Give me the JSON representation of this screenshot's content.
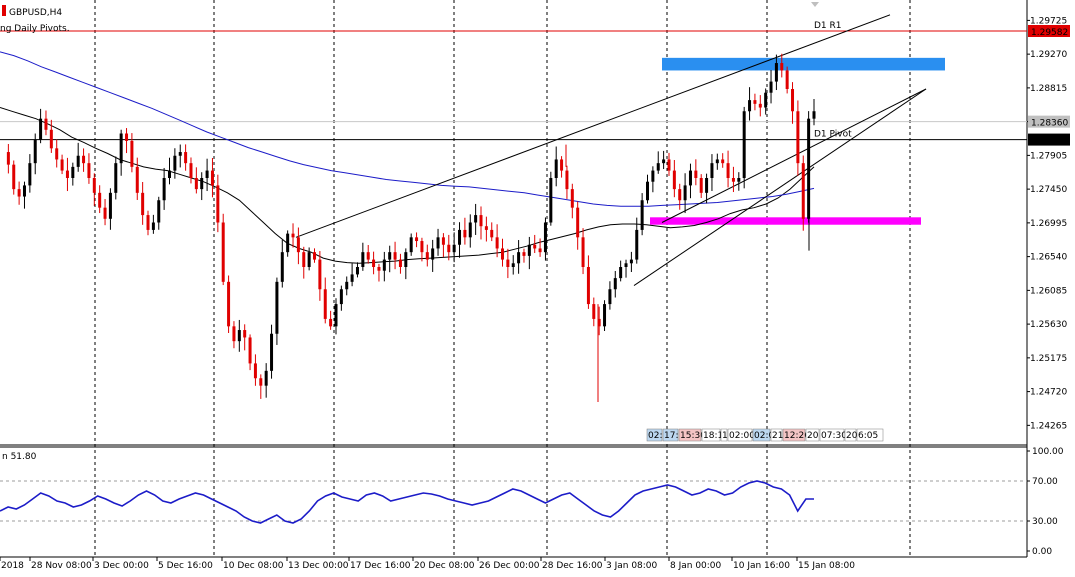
{
  "window": {
    "symbol_title": "GBPUSD,H4",
    "indicator_title": "ng Daily Pivots."
  },
  "colors": {
    "bull_candle": "#000000",
    "bear_candle": "#e00000",
    "ma_fast": "#000000",
    "ma_slow": "#1c1cc8",
    "rsi_line": "#1c1cc8",
    "pivot_r1": "#e00000",
    "pivot_d1": "#000000",
    "resistance_zone": "#2a8ff0",
    "support_zone": "#ff00ff",
    "price_tag_bg": "#e00000",
    "price_tag_current": "#000000",
    "price_tag_gray": "#c0c0c0"
  },
  "chart_data": [
    {
      "type": "candlestick",
      "symbol": "GBPUSD",
      "timeframe": "H4",
      "ylim": [
        1.24,
        1.3
      ],
      "price_ticks": [
        "1.29725",
        "1.29270",
        "1.28815",
        "1.28360",
        "1.27905",
        "1.27450",
        "1.26995",
        "1.26540",
        "1.26085",
        "1.25630",
        "1.25175",
        "1.24720",
        "1.24265"
      ],
      "x_labels": [
        "2018",
        "28 Nov 08:00",
        "3 Dec 00:00",
        "5 Dec 16:00",
        "10 Dec 08:00",
        "13 Dec 00:00",
        "17 Dec 16:00",
        "20 Dec 08:00",
        "26 Dec 00:00",
        "28 Dec 16:00",
        "3 Jan 08:00",
        "8 Jan 00:00",
        "10 Jan 16:00",
        "15 Jan 08:00"
      ],
      "price_tags": [
        {
          "value": "1.29582",
          "kind": "r1"
        },
        {
          "value": "1.28360",
          "kind": "gray"
        },
        {
          "value": "1.28118",
          "kind": "current"
        }
      ],
      "pivot_lines": [
        {
          "label": "D1 R1",
          "price": 1.29582
        },
        {
          "label": "D1 Pivot",
          "price": 1.28118
        }
      ],
      "zones": [
        {
          "name": "resistance",
          "from": 1.2922,
          "to": 1.2905
        },
        {
          "name": "support",
          "from": 1.2707,
          "to": 1.2697
        }
      ],
      "price_path": [
        1.2795,
        1.2778,
        1.2745,
        1.2735,
        1.275,
        1.278,
        1.2812,
        1.284,
        1.2825,
        1.28,
        1.2785,
        1.277,
        1.276,
        1.2775,
        1.279,
        1.278,
        1.276,
        1.274,
        1.272,
        1.2705,
        1.274,
        1.278,
        1.282,
        1.281,
        1.2775,
        1.274,
        1.271,
        1.269,
        1.27,
        1.273,
        1.276,
        1.277,
        1.279,
        1.2795,
        1.278,
        1.276,
        1.2745,
        1.276,
        1.277,
        1.275,
        1.27,
        1.262,
        1.256,
        1.254,
        1.2555,
        1.2545,
        1.251,
        1.249,
        1.248,
        1.25,
        1.255,
        1.262,
        1.266,
        1.2685,
        1.268,
        1.266,
        1.264,
        1.266,
        1.265,
        1.261,
        1.257,
        1.256,
        1.259,
        1.261,
        1.262,
        1.263,
        1.264,
        1.266,
        1.265,
        1.264,
        1.2635,
        1.265,
        1.266,
        1.265,
        1.264,
        1.266,
        1.268,
        1.2675,
        1.266,
        1.265,
        1.2665,
        1.268,
        1.267,
        1.266,
        1.267,
        1.269,
        1.268,
        1.27,
        1.271,
        1.2695,
        1.269,
        1.268,
        1.2665,
        1.265,
        1.264,
        1.2645,
        1.266,
        1.2655,
        1.267,
        1.2665,
        1.266,
        1.27,
        1.276,
        1.2785,
        1.277,
        1.2745,
        1.272,
        1.268,
        1.264,
        1.259,
        1.257,
        1.256,
        1.259,
        1.261,
        1.2625,
        1.264,
        1.2645,
        1.265,
        1.269,
        1.273,
        1.2755,
        1.277,
        1.278,
        1.2785,
        1.277,
        1.2745,
        1.273,
        1.275,
        1.277,
        1.276,
        1.274,
        1.276,
        1.278,
        1.2785,
        1.278,
        1.276,
        1.2755,
        1.276,
        1.285,
        1.2865,
        1.286,
        1.2855,
        1.2875,
        1.289,
        1.2915,
        1.2905,
        1.288,
        1.285,
        1.278,
        1.2705,
        1.284,
        1.285
      ],
      "ma_fast": [
        1.2855,
        1.285,
        1.2845,
        1.284,
        1.2833,
        1.2825,
        1.2815,
        1.2808,
        1.28,
        1.2793,
        1.2785,
        1.278,
        1.2775,
        1.2772,
        1.277,
        1.2765,
        1.276,
        1.2755,
        1.2748,
        1.274,
        1.273,
        1.2715,
        1.27,
        1.2685,
        1.2672,
        1.2665,
        1.266,
        1.2652,
        1.2648,
        1.2646,
        1.2645,
        1.2646,
        1.2647,
        1.2648,
        1.265,
        1.2651,
        1.2652,
        1.2653,
        1.2654,
        1.2655,
        1.2656,
        1.2658,
        1.266,
        1.2664,
        1.2668,
        1.2673,
        1.2677,
        1.2681,
        1.2685,
        1.269,
        1.2694,
        1.2697,
        1.2698,
        1.2698,
        1.2697,
        1.2695,
        1.2693,
        1.2694,
        1.2696,
        1.27,
        1.2705,
        1.2712,
        1.2717,
        1.272,
        1.2725,
        1.2733,
        1.2745,
        1.276,
        1.2775
      ],
      "ma_slow": [
        1.293,
        1.2925,
        1.2918,
        1.291,
        1.2903,
        1.2896,
        1.2889,
        1.2882,
        1.2875,
        1.2868,
        1.2861,
        1.2854,
        1.2846,
        1.2838,
        1.283,
        1.2822,
        1.2815,
        1.2808,
        1.2801,
        1.2795,
        1.2789,
        1.2783,
        1.2778,
        1.2774,
        1.277,
        1.2767,
        1.2764,
        1.2761,
        1.2758,
        1.2756,
        1.2754,
        1.2752,
        1.275,
        1.2749,
        1.2748,
        1.2746,
        1.2744,
        1.2742,
        1.274,
        1.2737,
        1.2734,
        1.2731,
        1.2728,
        1.2725,
        1.2723,
        1.2722,
        1.2722,
        1.2722,
        1.2723,
        1.2724,
        1.2725,
        1.2726,
        1.2727,
        1.2729,
        1.2731,
        1.2733,
        1.2735,
        1.2738,
        1.2742,
        1.2746
      ],
      "trendlines": [
        {
          "name": "upper-channel",
          "from": [
            "13 Dec",
            1.268
          ],
          "to": [
            "15 Jan",
            1.298
          ]
        },
        {
          "name": "rising-support",
          "from": [
            "3 Jan",
            1.2615
          ],
          "to": [
            "16 Jan",
            1.288
          ]
        },
        {
          "name": "lower-channel",
          "from": [
            "7 Jan",
            1.27
          ],
          "to": [
            "16 Jan",
            1.288
          ]
        }
      ],
      "timer_labels": [
        "02:",
        "17:0",
        "15:30",
        "18:1",
        "1",
        "02:00",
        "02:0",
        "21",
        "12:26",
        "20",
        "07:30",
        "20",
        "6:05"
      ]
    },
    {
      "type": "line",
      "name": "RSI",
      "label": "n 51.80",
      "ylim": [
        0,
        100
      ],
      "levels": [
        "100.00",
        "70.00",
        "30.00",
        "0.00"
      ],
      "values": [
        40,
        44,
        42,
        46,
        52,
        58,
        55,
        50,
        48,
        44,
        46,
        50,
        55,
        52,
        48,
        45,
        50,
        56,
        60,
        56,
        50,
        48,
        52,
        55,
        58,
        56,
        52,
        48,
        44,
        40,
        34,
        30,
        28,
        32,
        36,
        30,
        28,
        32,
        40,
        50,
        55,
        58,
        54,
        52,
        50,
        56,
        58,
        55,
        50,
        52,
        54,
        56,
        58,
        57,
        55,
        52,
        50,
        48,
        46,
        48,
        50,
        54,
        58,
        62,
        60,
        56,
        52,
        48,
        52,
        56,
        58,
        52,
        46,
        40,
        36,
        34,
        40,
        48,
        56,
        60,
        62,
        64,
        66,
        64,
        60,
        56,
        58,
        62,
        60,
        56,
        58,
        64,
        68,
        70,
        68,
        64,
        62,
        56,
        40,
        52,
        52
      ]
    }
  ]
}
